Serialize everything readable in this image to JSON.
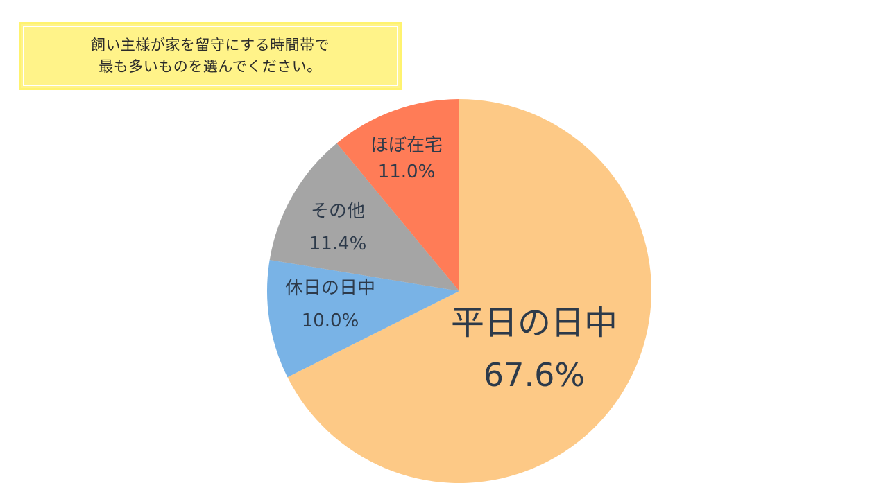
{
  "question": {
    "line1": "飼い主様が家を留守にする時間帯で",
    "line2": "最も多いものを選んでください。"
  },
  "chart_data": {
    "type": "pie",
    "title": "",
    "slices": [
      {
        "label": "平日の日中",
        "value": 67.6,
        "value_label": "67.6%",
        "color": "#fdc986"
      },
      {
        "label": "休日の日中",
        "value": 10.0,
        "value_label": "10.0%",
        "color": "#79b3e6"
      },
      {
        "label": "その他",
        "value": 11.4,
        "value_label": "11.4%",
        "color": "#a5a5a5"
      },
      {
        "label": "ほぼ在宅",
        "value": 11.0,
        "value_label": "11.0%",
        "color": "#ff7c57"
      }
    ],
    "start": "12 o'clock",
    "direction": "clockwise"
  }
}
